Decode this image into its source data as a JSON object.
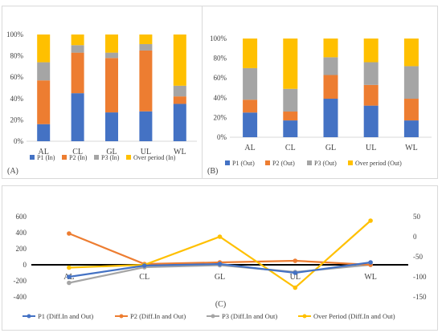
{
  "colors": {
    "p1": "#4472C4",
    "p2": "#ED7D31",
    "p3": "#A5A5A5",
    "over": "#FFC000",
    "axis": "#000000",
    "grid": "#d9d9d9"
  },
  "chart_data": [
    {
      "type": "bar",
      "stacked": true,
      "panel_label": "(A)",
      "categories": [
        "AL",
        "CL",
        "GL",
        "UL",
        "WL"
      ],
      "ylim": [
        0,
        100
      ],
      "yticks": [
        "0%",
        "20%",
        "40%",
        "60%",
        "80%",
        "100%"
      ],
      "legend_position": "bottom",
      "series": [
        {
          "name": "P1 (In)",
          "color_key": "p1",
          "values": [
            16,
            45,
            27,
            28,
            35
          ]
        },
        {
          "name": "P2 (In)",
          "color_key": "p2",
          "values": [
            41,
            38,
            51,
            57,
            7
          ]
        },
        {
          "name": "P3 (In)",
          "color_key": "p3",
          "values": [
            17,
            7,
            5,
            6,
            10
          ]
        },
        {
          "name": "Over period (In)",
          "color_key": "over",
          "values": [
            26,
            10,
            17,
            9,
            48
          ]
        }
      ]
    },
    {
      "type": "bar",
      "stacked": true,
      "panel_label": "(B)",
      "categories": [
        "AL",
        "CL",
        "GL",
        "UL",
        "WL"
      ],
      "ylim": [
        0,
        100
      ],
      "yticks": [
        "0%",
        "20%",
        "40%",
        "60%",
        "80%",
        "100%"
      ],
      "legend_position": "bottom",
      "series": [
        {
          "name": "P1 (Out)",
          "color_key": "p1",
          "values": [
            25,
            17,
            39,
            32,
            17
          ]
        },
        {
          "name": "P2 (Out)",
          "color_key": "p2",
          "values": [
            13,
            9,
            24,
            21,
            22
          ]
        },
        {
          "name": "P3 (Out)",
          "color_key": "p3",
          "values": [
            32,
            23,
            18,
            23,
            33
          ]
        },
        {
          "name": "Over period (Out)",
          "color_key": "over",
          "values": [
            30,
            51,
            19,
            24,
            28
          ]
        }
      ]
    },
    {
      "type": "line",
      "panel_label": "(C)",
      "categories": [
        "AL",
        "CL",
        "GL",
        "UL",
        "WL"
      ],
      "ylim": [
        -400,
        600
      ],
      "yticks": [
        "-400",
        "-200",
        "0",
        "200",
        "400",
        "600"
      ],
      "y2lim": [
        -150,
        50
      ],
      "y2ticks": [
        "-150",
        "-100",
        "-50",
        "0",
        "50"
      ],
      "legend_position": "bottom",
      "series": [
        {
          "name": "P1 (Diff.In and Out)",
          "color_key": "p1",
          "axis": "left",
          "values": [
            -150,
            -10,
            10,
            -100,
            30
          ]
        },
        {
          "name": "P2 (Diff.In and Out)",
          "color_key": "p2",
          "axis": "left",
          "values": [
            390,
            10,
            30,
            50,
            0
          ]
        },
        {
          "name": "P3 (Diff.In and Out)",
          "color_key": "p3",
          "axis": "left",
          "values": [
            -225,
            -30,
            -5,
            -90,
            0
          ]
        },
        {
          "name": "Over Period (Diff.In and Out)",
          "color_key": "over",
          "axis": "right",
          "values": [
            -77,
            -70,
            0,
            -127,
            40
          ]
        }
      ]
    }
  ]
}
